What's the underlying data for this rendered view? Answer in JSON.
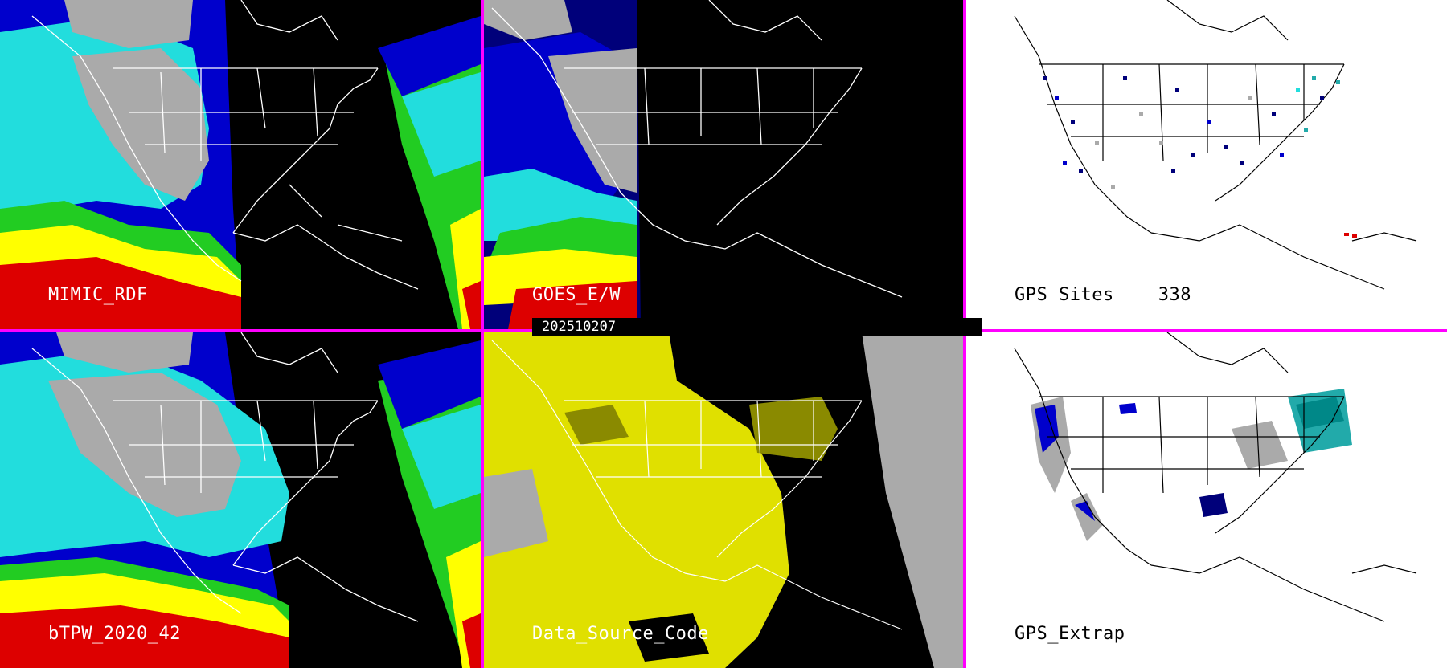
{
  "panels": {
    "mimic": {
      "label": "MIMIC_RDF"
    },
    "goes": {
      "label": "GOES_E/W"
    },
    "gps_sites": {
      "label": "GPS Sites",
      "count": "338"
    },
    "btpw": {
      "label": "bTPW_2020_42"
    },
    "source": {
      "label": "Data_Source_Code"
    },
    "gps_extrap": {
      "label": "GPS_Extrap"
    }
  },
  "date": "202510207",
  "colors": {
    "separator": "#ff00ff",
    "red": "#dd0000",
    "yellow": "#ffff00",
    "green": "#22cc22",
    "cyan": "#22dddd",
    "blue": "#0000cc",
    "navy": "#00007a",
    "gray": "#aaaaaa",
    "source_yellow": "#e0e000",
    "source_olive": "#8a8a00"
  }
}
